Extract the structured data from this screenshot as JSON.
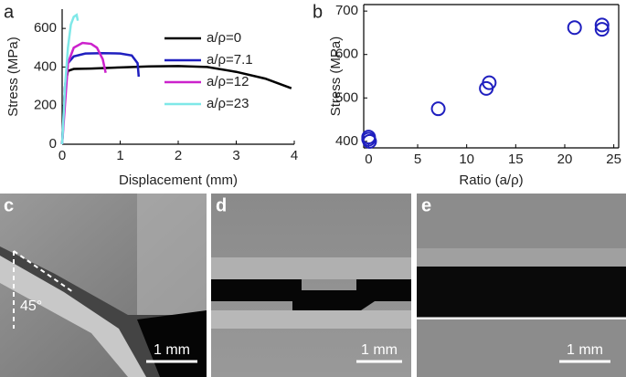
{
  "chart_data": [
    {
      "type": "line",
      "panel": "a",
      "xlabel": "Displacement (mm)",
      "ylabel": "Stress (MPa)",
      "xlim": [
        0,
        4
      ],
      "ylim": [
        0,
        700
      ],
      "xticks": [
        0,
        1,
        2,
        3,
        4
      ],
      "yticks": [
        0,
        200,
        400,
        600
      ],
      "legend": "upper right",
      "series": [
        {
          "name": "a/ρ=0",
          "color": "#000000",
          "x": [
            0,
            0.05,
            0.1,
            0.2,
            0.5,
            1,
            1.5,
            2,
            2.5,
            3,
            3.5,
            3.95
          ],
          "values": [
            0,
            300,
            380,
            390,
            392,
            398,
            403,
            405,
            400,
            375,
            340,
            290
          ]
        },
        {
          "name": "a/ρ=7.1",
          "color": "#1f1fbf",
          "x": [
            0,
            0.05,
            0.1,
            0.2,
            0.4,
            0.7,
            1.0,
            1.2,
            1.3,
            1.32
          ],
          "values": [
            0,
            300,
            420,
            455,
            470,
            472,
            470,
            460,
            420,
            350
          ]
        },
        {
          "name": "a/ρ=12",
          "color": "#cc22cc",
          "x": [
            0,
            0.1,
            0.2,
            0.35,
            0.5,
            0.6,
            0.7,
            0.75
          ],
          "values": [
            0,
            420,
            500,
            525,
            520,
            500,
            440,
            370
          ]
        },
        {
          "name": "a/ρ=23",
          "color": "#7fe8e8",
          "x": [
            0,
            0.05,
            0.1,
            0.15,
            0.2,
            0.25,
            0.27
          ],
          "values": [
            0,
            300,
            500,
            620,
            660,
            670,
            640
          ]
        }
      ]
    },
    {
      "type": "scatter",
      "panel": "b",
      "xlabel": "Ratio (a/ρ)",
      "ylabel": "Stress (MPa)",
      "xlim": [
        -0.5,
        25.5
      ],
      "ylim": [
        385,
        715
      ],
      "xticks": [
        0,
        5,
        10,
        15,
        20,
        25
      ],
      "yticks": [
        400,
        500,
        600,
        700
      ],
      "color": "#1f1fbf",
      "frame": true,
      "x": [
        0,
        0,
        0.1,
        7.1,
        12,
        12.3,
        21,
        23.8,
        23.8
      ],
      "values": [
        405,
        410,
        400,
        475,
        522,
        535,
        662,
        668,
        658
      ]
    }
  ],
  "figure": {
    "panel_labels": [
      "c",
      "d",
      "e"
    ],
    "scale_bars": [
      "1 mm",
      "1 mm",
      "1 mm"
    ],
    "angle": "45°"
  }
}
